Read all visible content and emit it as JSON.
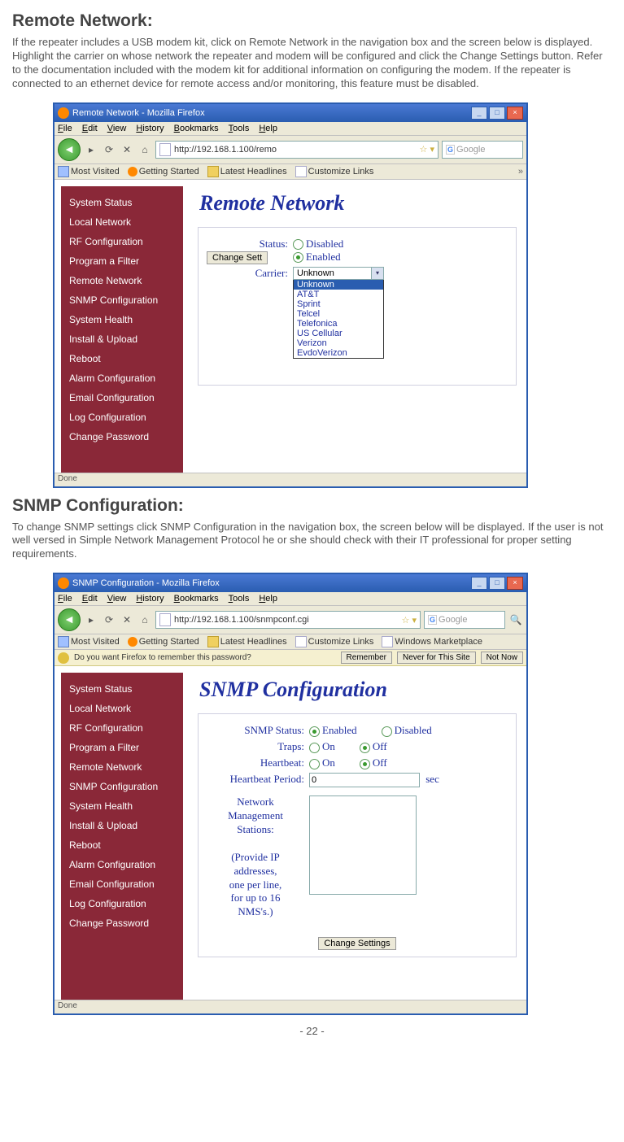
{
  "page_number": "- 22 -",
  "section1": {
    "title": "Remote Network:",
    "body": "If the repeater includes a USB modem kit, click on Remote Network in the navigation box and the screen below is displayed. Highlight the carrier on whose network the repeater and modem will be configured and click the Change Settings button. Refer to the documentation included with the modem kit for additional information on configuring the modem. If the repeater is connected to an ethernet device for remote access and/or monitoring, this feature must be disabled."
  },
  "section2": {
    "title": "SNMP Configuration:",
    "body": "To change SNMP settings click SNMP Configuration in the navigation box, the screen below will be displayed. If the user is not well versed in Simple Network Management Protocol he or she should check with their IT professional for proper setting requirements."
  },
  "menus": [
    "File",
    "Edit",
    "View",
    "History",
    "Bookmarks",
    "Tools",
    "Help"
  ],
  "bookmarks": [
    {
      "icon": "bm-blue",
      "label": "Most Visited"
    },
    {
      "icon": "bm-orange",
      "label": "Getting Started"
    },
    {
      "icon": "bm-folder",
      "label": "Latest Headlines"
    },
    {
      "icon": "bm-page",
      "label": "Customize Links"
    }
  ],
  "bookmarks2_extra": {
    "icon": "bm-page",
    "label": "Windows Marketplace"
  },
  "sidebar": [
    "System Status",
    "Local Network",
    "RF Configuration",
    "Program a Filter",
    "Remote Network",
    "SNMP Configuration",
    "System Health",
    "Install & Upload",
    "Reboot",
    "Alarm Configuration",
    "Email Configuration",
    "Log Configuration",
    "Change Password"
  ],
  "window1": {
    "title": "Remote Network - Mozilla Firefox",
    "url": "http://192.168.1.100/remo",
    "search_placeholder": "Google",
    "status": "Done",
    "panel_title": "Remote Network",
    "labels": {
      "status": "Status:",
      "carrier": "Carrier:"
    },
    "status_options": {
      "disabled": "Disabled",
      "enabled": "Enabled"
    },
    "status_selected": "enabled",
    "carrier_selected": "Unknown",
    "carrier_options": [
      "Unknown",
      "AT&T",
      "Sprint",
      "Telcel",
      "Telefonica",
      "US Cellular",
      "Verizon",
      "EvdoVerizon"
    ],
    "change_btn": "Change Sett"
  },
  "window2": {
    "title": "SNMP Configuration - Mozilla Firefox",
    "url": "http://192.168.1.100/snmpconf.cgi",
    "search_placeholder": "Google",
    "status": "Done",
    "panel_title": "SNMP Configuration",
    "pwd_prompt": "Do you want Firefox to remember this password?",
    "pwd_buttons": {
      "remember": "Remember",
      "never": "Never for This Site",
      "notnow": "Not Now"
    },
    "labels": {
      "snmp_status": "SNMP Status:",
      "traps": "Traps:",
      "heartbeat": "Heartbeat:",
      "heartbeat_period": "Heartbeat Period:",
      "nms": "Network\nManagement\nStations:\n\n(Provide IP\naddresses,\none per line,\nfor up to 16\nNMS's.)"
    },
    "opts": {
      "enabled": "Enabled",
      "disabled": "Disabled",
      "on": "On",
      "off": "Off"
    },
    "snmp_status_sel": "enabled",
    "traps_sel": "off",
    "heartbeat_sel": "off",
    "heartbeat_period": "0",
    "heartbeat_unit": "sec",
    "change_btn": "Change Settings"
  }
}
